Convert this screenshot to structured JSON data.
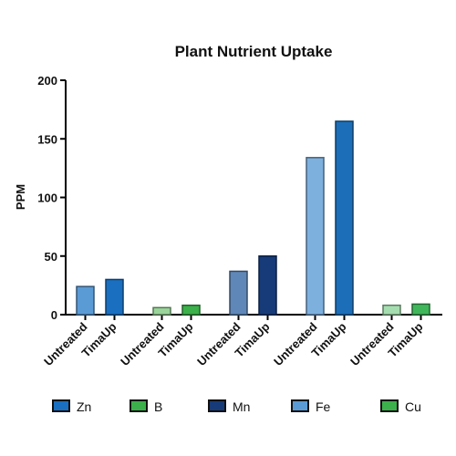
{
  "chart_data": {
    "type": "bar",
    "title": "Plant Nutrient Uptake",
    "xlabel": "",
    "ylabel": "PPM",
    "ylim": [
      0,
      200
    ],
    "yticks": [
      0,
      50,
      100,
      150,
      200
    ],
    "grid": false,
    "legend_position": "bottom",
    "groups": [
      {
        "nutrient": "Zn",
        "bars": [
          {
            "label": "Untreated",
            "value": 24,
            "color": "#5b9bd5"
          },
          {
            "label": "TimaUp",
            "value": 30,
            "color": "#1a6fc0"
          }
        ]
      },
      {
        "nutrient": "B",
        "bars": [
          {
            "label": "Untreated",
            "value": 6,
            "color": "#9ad49b"
          },
          {
            "label": "TimaUp",
            "value": 8,
            "color": "#3cb04a"
          }
        ]
      },
      {
        "nutrient": "Mn",
        "bars": [
          {
            "label": "Untreated",
            "value": 37,
            "color": "#5f87b8"
          },
          {
            "label": "TimaUp",
            "value": 50,
            "color": "#173b78"
          }
        ]
      },
      {
        "nutrient": "Fe",
        "bars": [
          {
            "label": "Untreated",
            "value": 134,
            "color": "#7eb0de"
          },
          {
            "label": "TimaUp",
            "value": 165,
            "color": "#1c6eb8"
          }
        ]
      },
      {
        "nutrient": "Cu",
        "bars": [
          {
            "label": "Untreated",
            "value": 8,
            "color": "#a6ddb0"
          },
          {
            "label": "TimaUp",
            "value": 9,
            "color": "#40b65a"
          }
        ]
      }
    ],
    "legend": [
      {
        "name": "Zn",
        "color": "#1a6fc0"
      },
      {
        "name": "B",
        "color": "#3cb04a"
      },
      {
        "name": "Mn",
        "color": "#173b78"
      },
      {
        "name": "Fe",
        "color": "#5b9bd5"
      },
      {
        "name": "Cu",
        "color": "#3cb04a"
      }
    ]
  }
}
